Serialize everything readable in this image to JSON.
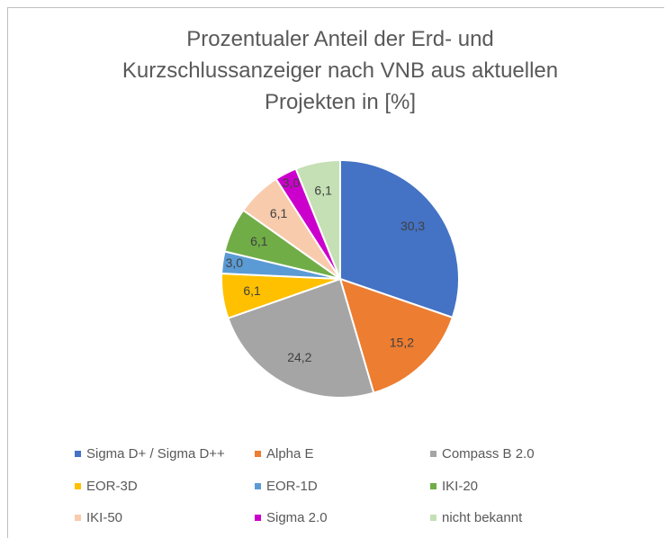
{
  "chart_data": {
    "type": "pie",
    "title": "Prozentualer Anteil der Erd- und Kurzschlussanzeiger nach VNB aus aktuellen Projekten in [%]",
    "categories": [
      "Sigma D+ / Sigma D++",
      "Alpha E",
      "Compass B 2.0",
      "EOR-3D",
      "EOR-1D",
      "IKI-20",
      "IKI-50",
      "Sigma 2.0",
      "nicht bekannt"
    ],
    "values": [
      30.3,
      15.2,
      24.2,
      6.1,
      3.0,
      6.1,
      6.1,
      3.0,
      6.1
    ],
    "value_labels": [
      "30,3",
      "15,2",
      "24,2",
      "6,1",
      "3,0",
      "6,1",
      "6,1",
      "3,0",
      "6,1"
    ],
    "colors": [
      "#4472c4",
      "#ed7d31",
      "#a5a5a5",
      "#ffc000",
      "#5b9bd5",
      "#70ad47",
      "#f8cbad",
      "#cc00cc",
      "#c5e0b4"
    ],
    "legend": "bottom"
  }
}
